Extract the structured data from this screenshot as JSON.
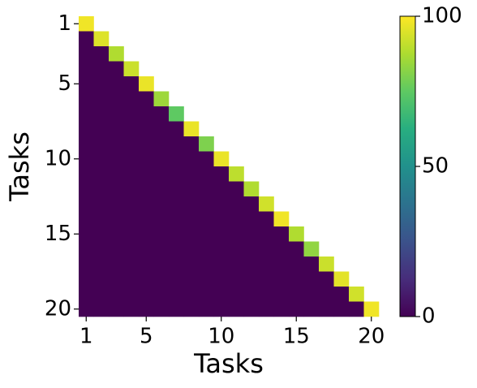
{
  "chart_data": {
    "type": "heatmap",
    "x_label": "Tasks",
    "y_label": "Tasks",
    "colormap": "viridis",
    "xlim": [
      0.5,
      20.5
    ],
    "ylim": [
      20.5,
      0.5
    ],
    "xticks": [
      1,
      5,
      10,
      15,
      20
    ],
    "yticks": [
      1,
      5,
      10,
      15,
      20
    ],
    "clim": [
      0,
      100
    ],
    "cticks": [
      0,
      50,
      100
    ],
    "z": [
      [
        98,
        null,
        null,
        null,
        null,
        null,
        null,
        null,
        null,
        null,
        null,
        null,
        null,
        null,
        null,
        null,
        null,
        null,
        null,
        null
      ],
      [
        0,
        95,
        null,
        null,
        null,
        null,
        null,
        null,
        null,
        null,
        null,
        null,
        null,
        null,
        null,
        null,
        null,
        null,
        null,
        null
      ],
      [
        0,
        0,
        88,
        null,
        null,
        null,
        null,
        null,
        null,
        null,
        null,
        null,
        null,
        null,
        null,
        null,
        null,
        null,
        null,
        null
      ],
      [
        0,
        0,
        0,
        92,
        null,
        null,
        null,
        null,
        null,
        null,
        null,
        null,
        null,
        null,
        null,
        null,
        null,
        null,
        null,
        null
      ],
      [
        0,
        0,
        0,
        0,
        97,
        null,
        null,
        null,
        null,
        null,
        null,
        null,
        null,
        null,
        null,
        null,
        null,
        null,
        null,
        null
      ],
      [
        0,
        0,
        0,
        0,
        0,
        85,
        null,
        null,
        null,
        null,
        null,
        null,
        null,
        null,
        null,
        null,
        null,
        null,
        null,
        null
      ],
      [
        0,
        0,
        0,
        0,
        0,
        0,
        75,
        null,
        null,
        null,
        null,
        null,
        null,
        null,
        null,
        null,
        null,
        null,
        null,
        null
      ],
      [
        0,
        0,
        0,
        0,
        0,
        0,
        0,
        97,
        null,
        null,
        null,
        null,
        null,
        null,
        null,
        null,
        null,
        null,
        null,
        null
      ],
      [
        0,
        0,
        0,
        0,
        0,
        0,
        0,
        0,
        80,
        null,
        null,
        null,
        null,
        null,
        null,
        null,
        null,
        null,
        null,
        null
      ],
      [
        0,
        0,
        0,
        0,
        0,
        0,
        0,
        0,
        0,
        97,
        null,
        null,
        null,
        null,
        null,
        null,
        null,
        null,
        null,
        null
      ],
      [
        0,
        0,
        0,
        0,
        0,
        0,
        0,
        0,
        0,
        0,
        90,
        null,
        null,
        null,
        null,
        null,
        null,
        null,
        null,
        null
      ],
      [
        0,
        0,
        0,
        0,
        0,
        0,
        0,
        0,
        0,
        0,
        0,
        88,
        null,
        null,
        null,
        null,
        null,
        null,
        null,
        null
      ],
      [
        0,
        0,
        0,
        0,
        0,
        0,
        0,
        0,
        0,
        0,
        0,
        0,
        93,
        null,
        null,
        null,
        null,
        null,
        null,
        null
      ],
      [
        0,
        0,
        0,
        0,
        0,
        0,
        0,
        0,
        0,
        0,
        0,
        0,
        0,
        98,
        null,
        null,
        null,
        null,
        null,
        null
      ],
      [
        0,
        0,
        0,
        0,
        0,
        0,
        0,
        0,
        0,
        0,
        0,
        0,
        0,
        0,
        88,
        null,
        null,
        null,
        null,
        null
      ],
      [
        0,
        0,
        0,
        0,
        0,
        0,
        0,
        0,
        0,
        0,
        0,
        0,
        0,
        0,
        0,
        83,
        null,
        null,
        null,
        null
      ],
      [
        0,
        0,
        0,
        0,
        0,
        0,
        0,
        0,
        0,
        0,
        0,
        0,
        0,
        0,
        0,
        0,
        92,
        null,
        null,
        null
      ],
      [
        0,
        0,
        0,
        0,
        0,
        0,
        0,
        0,
        0,
        0,
        0,
        0,
        0,
        0,
        0,
        0,
        0,
        96,
        null,
        null
      ],
      [
        0,
        0,
        0,
        0,
        0,
        0,
        0,
        0,
        0,
        0,
        0,
        0,
        0,
        0,
        0,
        0,
        0,
        0,
        93,
        null
      ],
      [
        0,
        0,
        0,
        0,
        0,
        0,
        0,
        0,
        0,
        0,
        0,
        0,
        0,
        0,
        0,
        0,
        0,
        0,
        0,
        98
      ]
    ]
  }
}
